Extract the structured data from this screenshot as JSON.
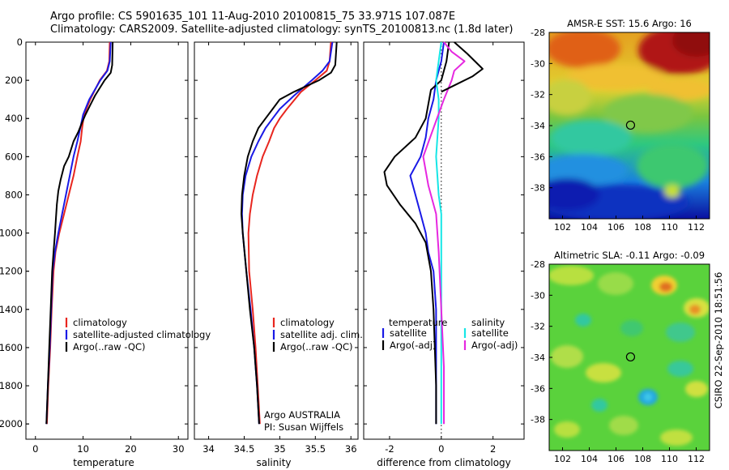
{
  "header": {
    "title_line1": "Argo profile: CS 5901635_101 11-Aug-2010 20100815_75 33.971S 107.087E",
    "title_line2": "Climatology: CARS2009. Satellite-adjusted climatology: synTS_20100813.nc (1.8d later)"
  },
  "credit": "CSIRO 22-Sep-2010 18:51:56",
  "colors": {
    "climatology": "#e8261f",
    "satellite": "#1a1ae6",
    "argo": "#000000",
    "satellite_sal": "#16e6e6",
    "argo_sal": "#e628e0",
    "dotted": "#000000"
  },
  "chart_data": [
    {
      "type": "line",
      "id": "temperature",
      "xlabel": "temperature",
      "ylabel": "",
      "xlim": [
        -2,
        32
      ],
      "ylim": [
        2080,
        0
      ],
      "y_reversed": true,
      "xticks": [
        0,
        10,
        20,
        30
      ],
      "yticks": [
        0,
        200,
        400,
        600,
        800,
        1000,
        1200,
        1400,
        1600,
        1800,
        2000
      ],
      "legend": [
        "climatology",
        "satellite-adjusted climatology",
        "Argo(..raw -QC)"
      ],
      "series": [
        {
          "name": "climatology",
          "color_key": "climatology",
          "points": [
            [
              15.6,
              0
            ],
            [
              15.5,
              100
            ],
            [
              15.0,
              150
            ],
            [
              13.5,
              200
            ],
            [
              11.5,
              300
            ],
            [
              10.2,
              380
            ],
            [
              9.8,
              450
            ],
            [
              9.5,
              520
            ],
            [
              8.8,
              600
            ],
            [
              8.0,
              700
            ],
            [
              7.0,
              800
            ],
            [
              6.0,
              900
            ],
            [
              5.0,
              1000
            ],
            [
              4.2,
              1100
            ],
            [
              3.8,
              1200
            ],
            [
              3.4,
              1400
            ],
            [
              3.1,
              1600
            ],
            [
              2.7,
              1800
            ],
            [
              2.4,
              2000
            ]
          ]
        },
        {
          "name": "satellite-adjusted climatology",
          "color_key": "satellite",
          "points": [
            [
              15.8,
              0
            ],
            [
              15.6,
              100
            ],
            [
              15.1,
              150
            ],
            [
              13.6,
              200
            ],
            [
              11.3,
              300
            ],
            [
              10.0,
              380
            ],
            [
              9.4,
              450
            ],
            [
              8.8,
              520
            ],
            [
              8.0,
              600
            ],
            [
              7.2,
              700
            ],
            [
              6.4,
              800
            ],
            [
              5.6,
              900
            ],
            [
              4.8,
              1000
            ],
            [
              4.1,
              1100
            ],
            [
              3.6,
              1200
            ],
            [
              3.3,
              1400
            ],
            [
              3.0,
              1600
            ],
            [
              2.6,
              1800
            ],
            [
              2.3,
              2000
            ]
          ]
        },
        {
          "name": "Argo(..raw -QC)",
          "color_key": "argo",
          "points": [
            [
              16.2,
              0
            ],
            [
              16.1,
              120
            ],
            [
              15.8,
              160
            ],
            [
              14.5,
              200
            ],
            [
              12.5,
              280
            ],
            [
              11.5,
              330
            ],
            [
              10.5,
              380
            ],
            [
              9.8,
              420
            ],
            [
              9.0,
              470
            ],
            [
              8.0,
              520
            ],
            [
              7.0,
              600
            ],
            [
              6.0,
              650
            ],
            [
              5.3,
              720
            ],
            [
              4.8,
              780
            ],
            [
              4.5,
              850
            ],
            [
              4.3,
              920
            ],
            [
              4.1,
              1000
            ],
            [
              3.8,
              1100
            ],
            [
              3.5,
              1200
            ],
            [
              3.2,
              1400
            ],
            [
              2.9,
              1600
            ],
            [
              2.6,
              1800
            ],
            [
              2.3,
              2000
            ]
          ]
        }
      ]
    },
    {
      "type": "line",
      "id": "salinity",
      "xlabel": "salinity",
      "ylabel": "",
      "xlim": [
        33.8,
        36.1
      ],
      "ylim": [
        2080,
        0
      ],
      "y_reversed": true,
      "xticks": [
        34,
        34.5,
        35,
        35.5,
        36
      ],
      "legend": [
        "climatology",
        "satellite adj. clim.",
        "Argo(..raw -QC)"
      ],
      "annotation": [
        "Argo AUSTRALIA",
        "PI: Susan Wijffels"
      ],
      "series": [
        {
          "name": "climatology",
          "color_key": "climatology",
          "points": [
            [
              35.72,
              0
            ],
            [
              35.7,
              100
            ],
            [
              35.66,
              150
            ],
            [
              35.5,
              200
            ],
            [
              35.3,
              260
            ],
            [
              35.1,
              350
            ],
            [
              35.0,
              400
            ],
            [
              34.92,
              450
            ],
            [
              34.85,
              520
            ],
            [
              34.76,
              600
            ],
            [
              34.68,
              700
            ],
            [
              34.62,
              800
            ],
            [
              34.58,
              900
            ],
            [
              34.56,
              1000
            ],
            [
              34.57,
              1200
            ],
            [
              34.62,
              1400
            ],
            [
              34.66,
              1600
            ],
            [
              34.69,
              1800
            ],
            [
              34.72,
              2000
            ]
          ]
        },
        {
          "name": "satellite adj. clim.",
          "color_key": "satellite",
          "points": [
            [
              35.74,
              0
            ],
            [
              35.7,
              100
            ],
            [
              35.6,
              150
            ],
            [
              35.45,
              200
            ],
            [
              35.2,
              280
            ],
            [
              35.0,
              350
            ],
            [
              34.9,
              400
            ],
            [
              34.8,
              450
            ],
            [
              34.7,
              520
            ],
            [
              34.6,
              600
            ],
            [
              34.52,
              700
            ],
            [
              34.48,
              800
            ],
            [
              34.47,
              900
            ],
            [
              34.48,
              1000
            ],
            [
              34.53,
              1200
            ],
            [
              34.59,
              1400
            ],
            [
              34.64,
              1600
            ],
            [
              34.68,
              1800
            ],
            [
              34.71,
              2000
            ]
          ]
        },
        {
          "name": "Argo(..raw -QC)",
          "color_key": "argo",
          "points": [
            [
              35.8,
              0
            ],
            [
              35.78,
              120
            ],
            [
              35.72,
              160
            ],
            [
              35.55,
              200
            ],
            [
              35.2,
              260
            ],
            [
              35.0,
              300
            ],
            [
              34.9,
              350
            ],
            [
              34.8,
              400
            ],
            [
              34.7,
              450
            ],
            [
              34.62,
              520
            ],
            [
              34.55,
              600
            ],
            [
              34.5,
              700
            ],
            [
              34.47,
              800
            ],
            [
              34.46,
              900
            ],
            [
              34.48,
              1000
            ],
            [
              34.53,
              1200
            ],
            [
              34.58,
              1400
            ],
            [
              34.64,
              1600
            ],
            [
              34.68,
              1800
            ],
            [
              34.71,
              2000
            ]
          ]
        }
      ]
    },
    {
      "type": "line",
      "id": "difference",
      "xlabel": "difference from climatology",
      "ylabel": "",
      "xlim": [
        -3,
        3.2
      ],
      "ylim": [
        2080,
        0
      ],
      "y_reversed": true,
      "xticks": [
        -2,
        0,
        2
      ],
      "legend_left_header": "temperature",
      "legend_left": [
        "satellite",
        "Argo(-adj)"
      ],
      "legend_right_header": "salinity",
      "legend_right": [
        "satellite",
        "Argo(-adj)"
      ],
      "series": [
        {
          "name": "satellite",
          "group": "temperature",
          "color_key": "satellite",
          "points": [
            [
              0.1,
              0
            ],
            [
              0.0,
              100
            ],
            [
              -0.2,
              200
            ],
            [
              -0.3,
              300
            ],
            [
              -0.5,
              400
            ],
            [
              -0.6,
              500
            ],
            [
              -0.8,
              600
            ],
            [
              -1.2,
              700
            ],
            [
              -1.0,
              800
            ],
            [
              -0.8,
              900
            ],
            [
              -0.6,
              1000
            ],
            [
              -0.5,
              1100
            ],
            [
              -0.3,
              1200
            ],
            [
              -0.2,
              1400
            ],
            [
              -0.2,
              1600
            ],
            [
              -0.2,
              1800
            ],
            [
              -0.2,
              2000
            ]
          ]
        },
        {
          "name": "Argo(-adj)",
          "group": "temperature",
          "color_key": "argo",
          "points": [
            [
              0.3,
              0
            ],
            [
              0.2,
              100
            ],
            [
              0.0,
              200
            ],
            [
              -0.4,
              250
            ],
            [
              -0.6,
              400
            ],
            [
              -1.0,
              500
            ],
            [
              -1.8,
              600
            ],
            [
              -2.2,
              680
            ],
            [
              -2.1,
              750
            ],
            [
              -1.6,
              850
            ],
            [
              -1.0,
              950
            ],
            [
              -0.6,
              1050
            ],
            [
              -0.4,
              1200
            ],
            [
              -0.3,
              1400
            ],
            [
              -0.25,
              1600
            ],
            [
              -0.2,
              1800
            ],
            [
              -0.2,
              2000
            ]
          ]
        },
        {
          "name": "satellite",
          "group": "salinity",
          "color_key": "satellite_sal",
          "points": [
            [
              0.0,
              0
            ],
            [
              -0.1,
              100
            ],
            [
              -0.2,
              200
            ],
            [
              -0.1,
              300
            ],
            [
              -0.1,
              400
            ],
            [
              -0.2,
              600
            ],
            [
              -0.1,
              800
            ],
            [
              0.0,
              900
            ],
            [
              0.0,
              1200
            ],
            [
              0.0,
              1600
            ],
            [
              0.0,
              2000
            ]
          ]
        },
        {
          "name": "Argo(-adj)",
          "group": "salinity",
          "color_key": "argo_sal",
          "points": [
            [
              0.1,
              0
            ],
            [
              0.4,
              50
            ],
            [
              0.9,
              100
            ],
            [
              0.5,
              150
            ],
            [
              0.4,
              200
            ],
            [
              0.1,
              300
            ],
            [
              -0.3,
              450
            ],
            [
              -0.7,
              600
            ],
            [
              -0.5,
              750
            ],
            [
              -0.2,
              900
            ],
            [
              -0.1,
              1100
            ],
            [
              0.0,
              1400
            ],
            [
              0.1,
              1700
            ],
            [
              0.1,
              2000
            ]
          ]
        },
        {
          "name": "Argo(-adj) temperature spike",
          "group": "temperature-upper",
          "color_key": "argo",
          "points": [
            [
              0.5,
              0
            ],
            [
              1.0,
              60
            ],
            [
              1.6,
              140
            ],
            [
              1.2,
              180
            ],
            [
              0.6,
              220
            ],
            [
              0.0,
              260
            ]
          ]
        }
      ]
    },
    {
      "type": "heatmap",
      "id": "sst_map",
      "title": "AMSR-E SST: 15.6 Argo: 16",
      "xlim": [
        101,
        113
      ],
      "ylim": [
        -40,
        -28
      ],
      "xticks": [
        102,
        104,
        106,
        108,
        110,
        112
      ],
      "yticks": [
        -28,
        -30,
        -32,
        -34,
        -36,
        -38
      ],
      "marker": [
        107.087,
        -33.971
      ]
    },
    {
      "type": "heatmap",
      "id": "sla_map",
      "title": "Altimetric SLA: -0.11 Argo: -0.09",
      "xlim": [
        101,
        113
      ],
      "ylim": [
        -40,
        -28
      ],
      "xticks": [
        102,
        104,
        106,
        108,
        110,
        112
      ],
      "yticks": [
        -28,
        -30,
        -32,
        -34,
        -36,
        -38
      ],
      "marker": [
        107.087,
        -33.971
      ]
    }
  ]
}
